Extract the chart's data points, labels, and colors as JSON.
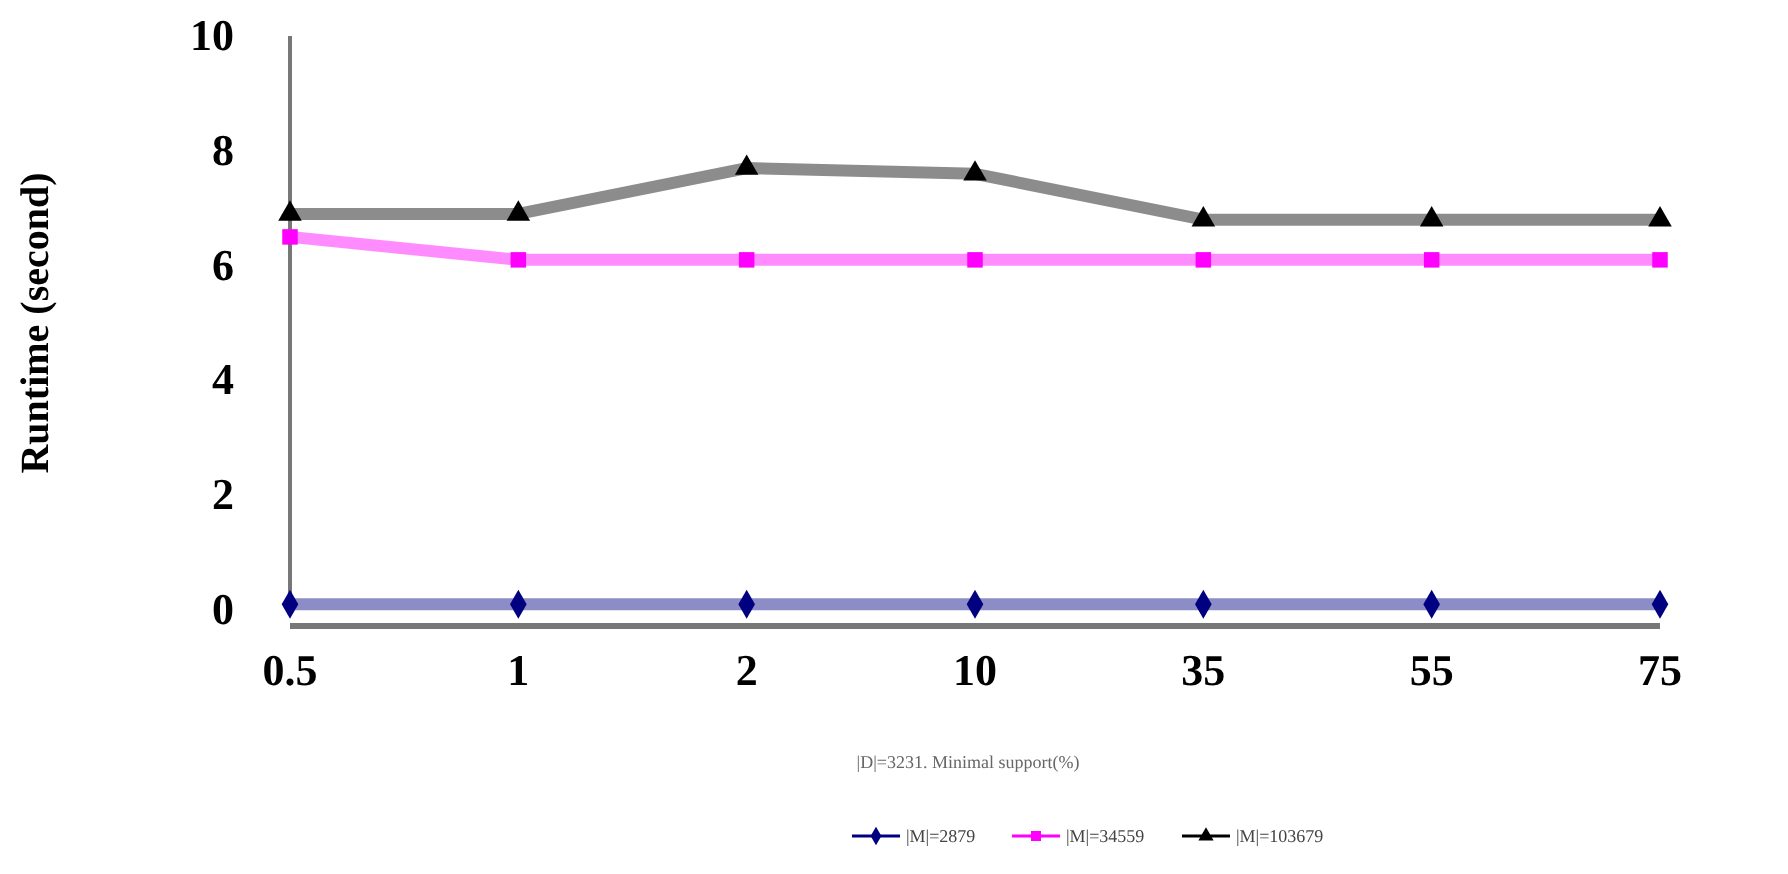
{
  "chart_data": {
    "type": "line",
    "xlabel": "|D|=3231. Minimal support(%)",
    "ylabel": "Runtime (second)",
    "categories": [
      "0.5",
      "1",
      "2",
      "10",
      "35",
      "55",
      "75"
    ],
    "ylim": [
      0,
      10
    ],
    "yticks": [
      0,
      2,
      4,
      6,
      8,
      10
    ],
    "legend": "bottom",
    "grid": false,
    "series": [
      {
        "name": "|M|=2879",
        "color": "#000080",
        "marker": "diamond",
        "values": [
          0.1,
          0.1,
          0.1,
          0.1,
          0.1,
          0.1,
          0.1
        ]
      },
      {
        "name": "|M|=34559",
        "color": "#ff00ff",
        "marker": "square",
        "values": [
          6.5,
          6.1,
          6.1,
          6.1,
          6.1,
          6.1,
          6.1
        ]
      },
      {
        "name": "|M|=103679",
        "color": "#000000",
        "marker": "triangle",
        "values": [
          6.9,
          6.9,
          7.7,
          7.6,
          6.8,
          6.8,
          6.8
        ]
      }
    ]
  }
}
